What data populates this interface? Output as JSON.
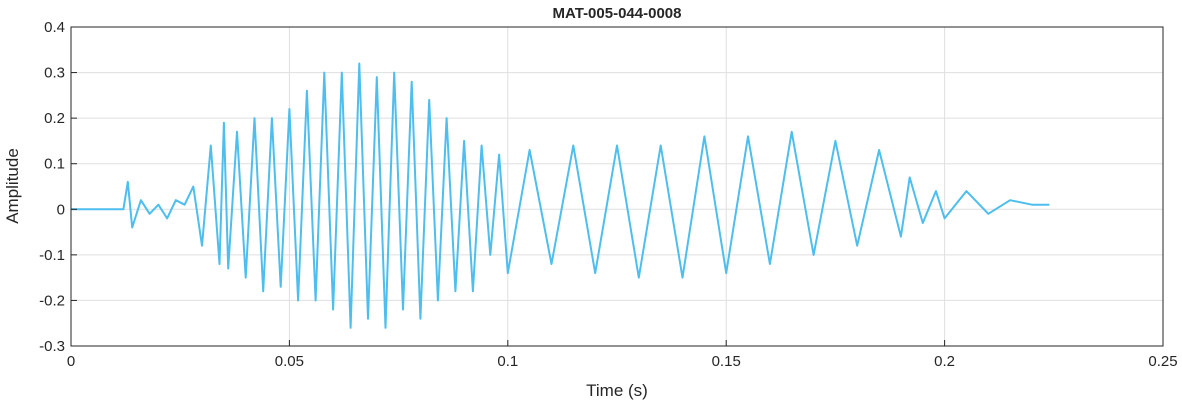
{
  "chart_data": {
    "type": "line",
    "title": "MAT-005-044-0008",
    "xlabel": "Time (s)",
    "ylabel": "Amplitude",
    "xlim": [
      0,
      0.25
    ],
    "ylim": [
      -0.3,
      0.4
    ],
    "xticks": [
      0,
      0.05,
      0.1,
      0.15,
      0.2,
      0.25
    ],
    "xtick_labels": [
      "0",
      "0.05",
      "0.1",
      "0.15",
      "0.2",
      "0.25"
    ],
    "yticks": [
      -0.3,
      -0.2,
      -0.1,
      0,
      0.1,
      0.2,
      0.3,
      0.4
    ],
    "ytick_labels": [
      "-0.3",
      "-0.2",
      "-0.1",
      "0",
      "0.1",
      "0.2",
      "0.3",
      "0.4"
    ],
    "grid": true,
    "line_color": "#4DBEEE",
    "series": [
      {
        "x": [
          0,
          0.012,
          0.013,
          0.014,
          0.016,
          0.018,
          0.02,
          0.022,
          0.024,
          0.026,
          0.028,
          0.03,
          0.032,
          0.034,
          0.035,
          0.036,
          0.038,
          0.04,
          0.042,
          0.044,
          0.046,
          0.048,
          0.05,
          0.052,
          0.054,
          0.056,
          0.058,
          0.06,
          0.062,
          0.064,
          0.066,
          0.068,
          0.07,
          0.072,
          0.074,
          0.076,
          0.078,
          0.08,
          0.082,
          0.084,
          0.086,
          0.088,
          0.09,
          0.092,
          0.094,
          0.096,
          0.098,
          0.1,
          0.105,
          0.11,
          0.115,
          0.12,
          0.125,
          0.13,
          0.135,
          0.14,
          0.145,
          0.15,
          0.155,
          0.16,
          0.165,
          0.17,
          0.175,
          0.18,
          0.185,
          0.19,
          0.192,
          0.195,
          0.198,
          0.2,
          0.205,
          0.21,
          0.215,
          0.22,
          0.224
        ],
        "y": [
          0.0,
          0.0,
          0.06,
          -0.04,
          0.02,
          -0.01,
          0.01,
          -0.02,
          0.02,
          0.01,
          0.05,
          -0.08,
          0.14,
          -0.12,
          0.19,
          -0.13,
          0.17,
          -0.15,
          0.2,
          -0.18,
          0.2,
          -0.17,
          0.22,
          -0.2,
          0.26,
          -0.2,
          0.3,
          -0.22,
          0.3,
          -0.26,
          0.32,
          -0.24,
          0.29,
          -0.26,
          0.3,
          -0.22,
          0.28,
          -0.24,
          0.24,
          -0.2,
          0.2,
          -0.18,
          0.15,
          -0.18,
          0.14,
          -0.1,
          0.12,
          -0.14,
          0.13,
          -0.12,
          0.14,
          -0.14,
          0.14,
          -0.15,
          0.14,
          -0.15,
          0.16,
          -0.14,
          0.16,
          -0.12,
          0.17,
          -0.1,
          0.15,
          -0.08,
          0.13,
          -0.06,
          0.07,
          -0.03,
          0.04,
          -0.02,
          0.04,
          -0.01,
          0.02,
          0.01,
          0.01
        ]
      }
    ]
  }
}
